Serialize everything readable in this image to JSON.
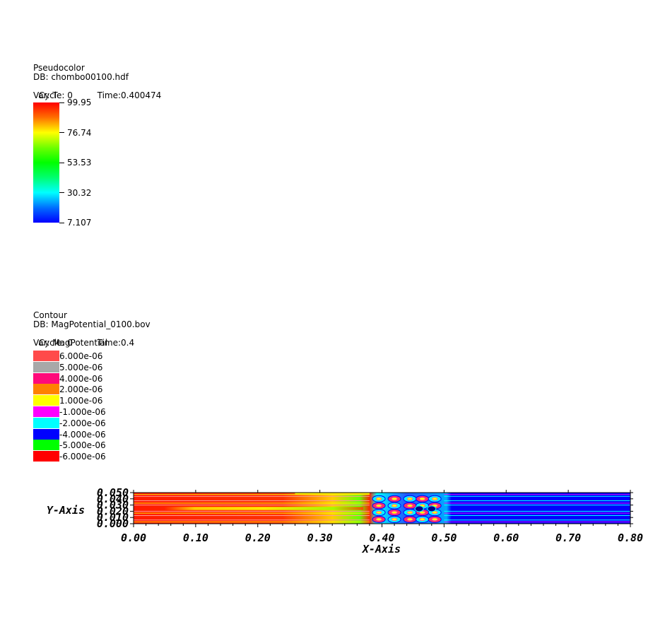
{
  "pseudocolor": {
    "title": "Pseudocolor",
    "db": "DB: chombo00100.hdf",
    "cycle": "Cycle: 0",
    "time": "Time:0.400474",
    "var": "Var: T",
    "labels": [
      "99.95",
      "76.74",
      "53.53",
      "30.32",
      "7.107"
    ]
  },
  "contour": {
    "title": "Contour",
    "db": "DB: MagPotential_0100.bov",
    "cycle": "Cycle: 0",
    "time": "Time:0.4",
    "var": "Var: MagPotential",
    "levels": [
      {
        "label": "6.000e-06",
        "color": "#ff4a4a"
      },
      {
        "label": "5.000e-06",
        "color": "#a8a8a8"
      },
      {
        "label": "4.000e-06",
        "color": "#ff0a7a"
      },
      {
        "label": "2.000e-06",
        "color": "#ff8200"
      },
      {
        "label": "1.000e-06",
        "color": "#ffff00"
      },
      {
        "label": "-1.000e-06",
        "color": "#ff00ff"
      },
      {
        "label": "-2.000e-06",
        "color": "#00ffff"
      },
      {
        "label": "-4.000e-06",
        "color": "#0000ff"
      },
      {
        "label": "-5.000e-06",
        "color": "#00ff00"
      },
      {
        "label": "-6.000e-06",
        "color": "#ff0000"
      }
    ]
  },
  "chart_data": {
    "type": "heatmap",
    "xlabel": "X-Axis",
    "ylabel": "Y-Axis",
    "xlim": [
      0.0,
      0.8
    ],
    "ylim": [
      0.0,
      0.05
    ],
    "x_ticks": [
      "0.00",
      "0.10",
      "0.20",
      "0.30",
      "0.40",
      "0.50",
      "0.60",
      "0.70",
      "0.80"
    ],
    "y_ticks": [
      "0.000",
      "0.010",
      "0.020",
      "0.030",
      "0.040",
      "0.050"
    ],
    "regions": [
      {
        "x": [
          0.0,
          0.38
        ],
        "variable": "T",
        "value": "hot (~99)",
        "color": "#ff0000"
      },
      {
        "x": [
          0.38,
          0.5
        ],
        "variable": "T",
        "value": "mixed / vortical",
        "color": "#00ffff"
      },
      {
        "x": [
          0.5,
          0.8
        ],
        "variable": "T",
        "value": "cold (~7)",
        "color": "#0000ff"
      }
    ],
    "colors": {
      "hot": "#ff0000",
      "warm": "#ffff00",
      "mid": "#00ff00",
      "cool": "#00ffff",
      "cold": "#0000ff"
    }
  }
}
